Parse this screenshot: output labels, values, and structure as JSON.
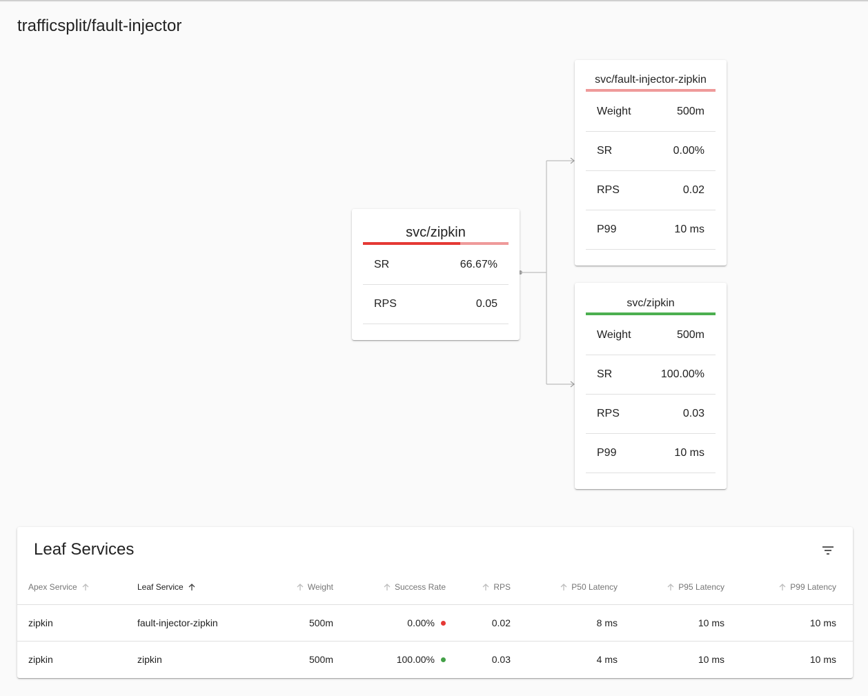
{
  "page": {
    "title": "trafficsplit/fault-injector"
  },
  "apex_node": {
    "title": "svc/zipkin",
    "bar_success_fraction": 0.6667,
    "rows": [
      {
        "label": "SR",
        "value": "66.67%"
      },
      {
        "label": "RPS",
        "value": "0.05"
      }
    ]
  },
  "leaf_nodes": [
    {
      "title": "svc/fault-injector-zipkin",
      "bar_color": "#ef9a9a",
      "rows": [
        {
          "label": "Weight",
          "value": "500m"
        },
        {
          "label": "SR",
          "value": "0.00%"
        },
        {
          "label": "RPS",
          "value": "0.02"
        },
        {
          "label": "P99",
          "value": "10 ms"
        }
      ]
    },
    {
      "title": "svc/zipkin",
      "bar_color": "#4caf50",
      "rows": [
        {
          "label": "Weight",
          "value": "500m"
        },
        {
          "label": "SR",
          "value": "100.00%"
        },
        {
          "label": "RPS",
          "value": "0.03"
        },
        {
          "label": "P99",
          "value": "10 ms"
        }
      ]
    }
  ],
  "colors": {
    "error": "#e53935",
    "error_light": "#ef9a9a",
    "success": "#43a047"
  },
  "table": {
    "title": "Leaf Services",
    "filter_icon": "filter-list-icon",
    "columns": [
      "Apex Service",
      "Leaf Service",
      "Weight",
      "Success Rate",
      "RPS",
      "P50 Latency",
      "P95 Latency",
      "P99 Latency"
    ],
    "rows": [
      {
        "apex": "zipkin",
        "leaf": "fault-injector-zipkin",
        "weight": "500m",
        "success_rate": "0.00%",
        "status": "error",
        "rps": "0.02",
        "p50": "8 ms",
        "p95": "10 ms",
        "p99": "10 ms"
      },
      {
        "apex": "zipkin",
        "leaf": "zipkin",
        "weight": "500m",
        "success_rate": "100.00%",
        "status": "success",
        "rps": "0.03",
        "p50": "4 ms",
        "p95": "10 ms",
        "p99": "10 ms"
      }
    ]
  }
}
